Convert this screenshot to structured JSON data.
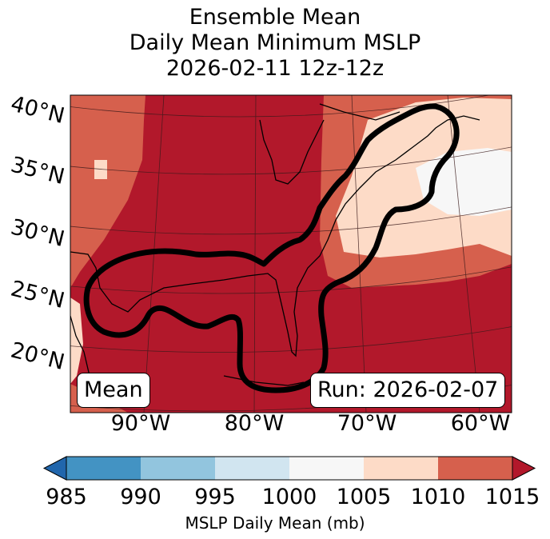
{
  "title": {
    "line1": "Ensemble Mean",
    "line2": "Daily Mean Minimum MSLP",
    "line3": "2026-02-11 12z-12z"
  },
  "map": {
    "lat_labels": [
      "40°N",
      "35°N",
      "30°N",
      "25°N",
      "20°N"
    ],
    "lon_labels": [
      "90°W",
      "80°W",
      "70°W",
      "60°W"
    ],
    "left_box": "Mean",
    "right_box": "Run: 2026-02-07",
    "colors": {
      "band_1010_1015": "#b2182b",
      "band_1005_1010": "#d6604d",
      "band_1000_1005": "#fddbc7",
      "band_995_1000": "#f7f7f7",
      "contour": "#000000"
    }
  },
  "colorbar": {
    "ticks": [
      "985",
      "990",
      "995",
      "1000",
      "1005",
      "1010",
      "1015"
    ],
    "label": "MSLP Daily Mean (mb)",
    "colors": [
      "#2166ac",
      "#4393c3",
      "#92c5de",
      "#d1e5f0",
      "#f7f7f7",
      "#fddbc7",
      "#d6604d",
      "#b2182b"
    ]
  }
}
